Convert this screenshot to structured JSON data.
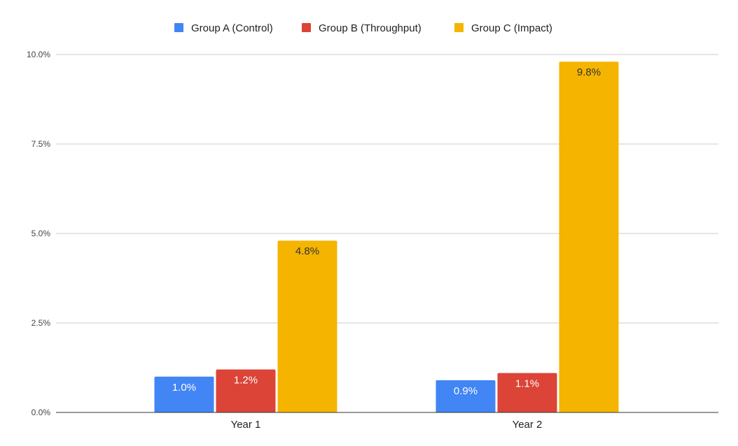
{
  "chart_data": {
    "type": "bar",
    "title": "",
    "xlabel": "",
    "ylabel": "",
    "categories": [
      "Year 1",
      "Year 2"
    ],
    "series": [
      {
        "name": "Group A (Control)",
        "values": [
          1.0,
          0.9
        ],
        "labels": [
          "1.0%",
          "0.9%"
        ],
        "color": "#4285f4",
        "label_color": "#ffffff"
      },
      {
        "name": "Group B (Throughput)",
        "values": [
          1.2,
          1.1
        ],
        "labels": [
          "1.2%",
          "1.1%"
        ],
        "color": "#db4437",
        "label_color": "#ffffff"
      },
      {
        "name": "Group C (Impact)",
        "values": [
          4.8,
          9.8
        ],
        "labels": [
          "4.8%",
          "9.8%"
        ],
        "color": "#f4b400",
        "label_color": "#333333"
      }
    ],
    "ylim": [
      0,
      10
    ],
    "yticks": [
      "0.0%",
      "2.5%",
      "5.0%",
      "7.5%",
      "10.0%"
    ],
    "ytick_values": [
      0,
      2.5,
      5,
      7.5,
      10
    ],
    "grid": true,
    "legend": "top"
  }
}
